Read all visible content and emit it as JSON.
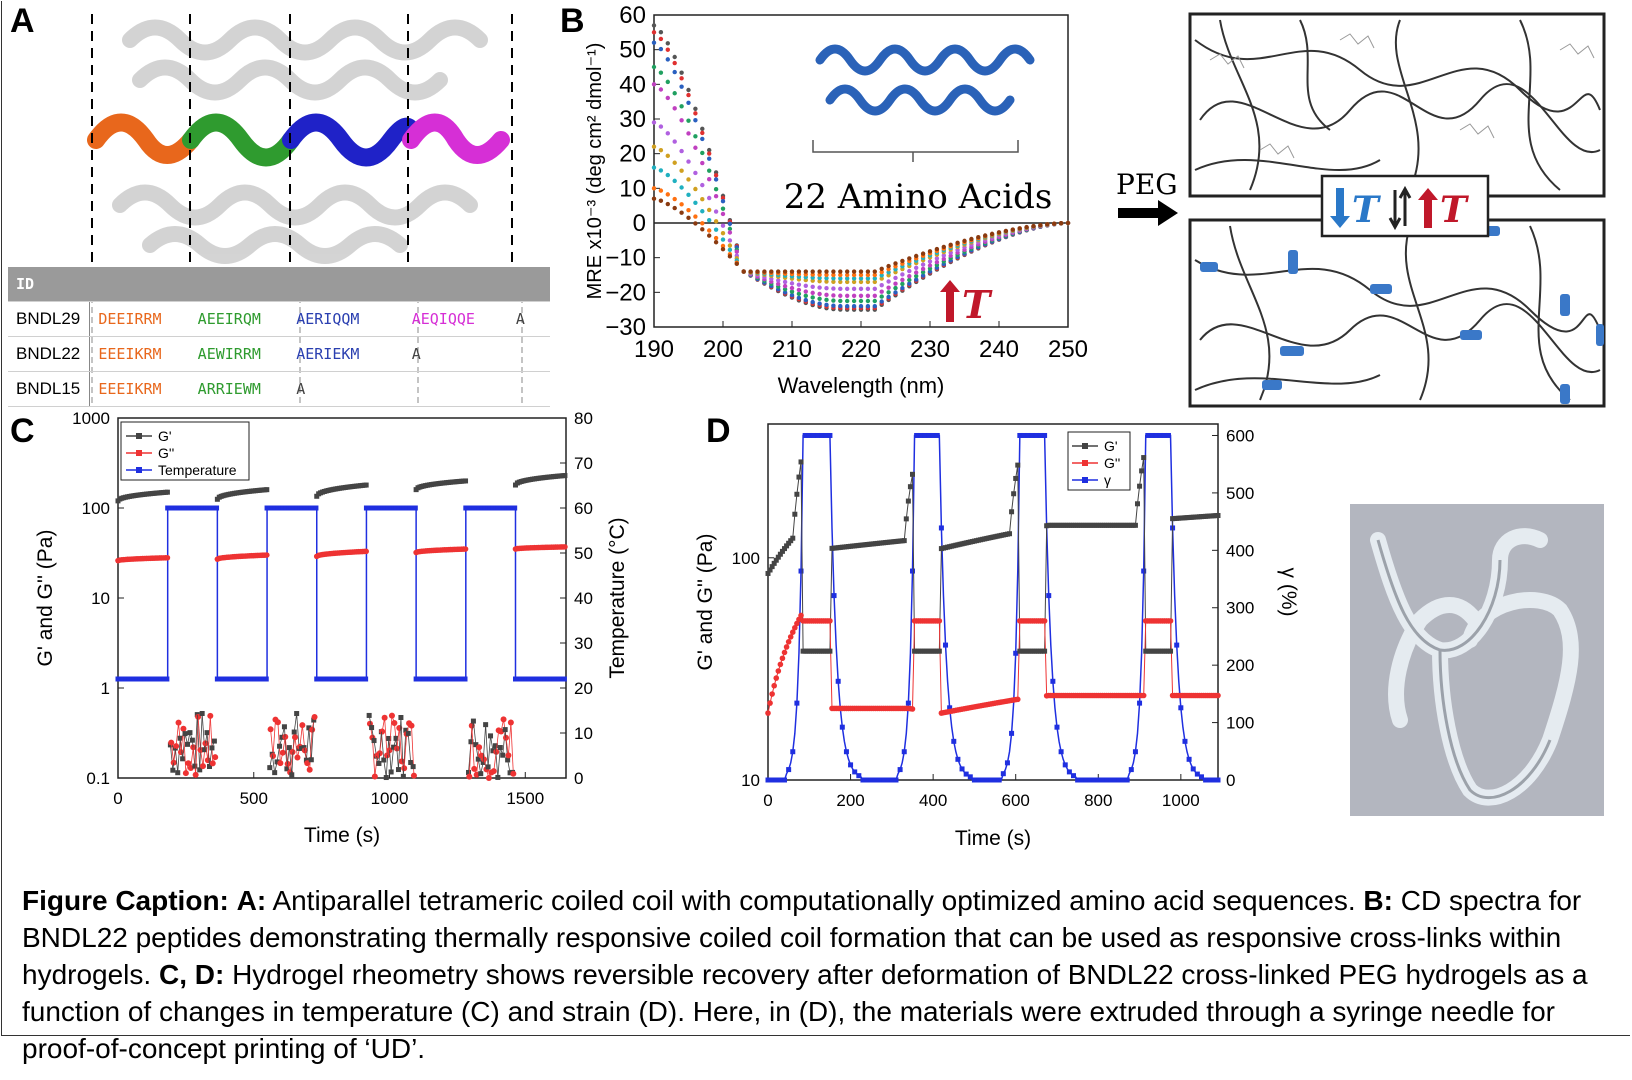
{
  "panels": {
    "a": "A",
    "b": "B",
    "c": "C",
    "d": "D"
  },
  "panel_a": {
    "table": {
      "header": "ID",
      "rows": [
        {
          "id": "BNDL29",
          "segments": [
            "DEEIRRM",
            "AEEIRQM",
            "AERIQQM",
            "AEQIQQE",
            "A"
          ]
        },
        {
          "id": "BNDL22",
          "segments": [
            "EEEIKRM",
            "AEWIRRM",
            "AERIEKM",
            "A",
            ""
          ]
        },
        {
          "id": "BNDL15",
          "segments": [
            "EEEIKRM",
            "ARRIEWM",
            "A",
            "",
            ""
          ]
        }
      ],
      "segment_colors": [
        "#e8671c",
        "#2f9b2f",
        "#2a3fb0",
        "#d62fd6",
        "#444444"
      ]
    }
  },
  "panel_b": {
    "inset_label": "22 Amino Acids",
    "peg_label": "PEG",
    "arrow_label": "T",
    "legend_t": "T"
  },
  "chart_data": [
    {
      "type": "scatter",
      "panel": "B",
      "xlabel": "Wavelength (nm)",
      "ylabel": "MRE x10⁻³ (deg cm² dmol⁻¹)",
      "xlim": [
        190,
        250
      ],
      "ylim": [
        -30,
        60
      ],
      "xticks": [
        "190",
        "200",
        "210",
        "220",
        "230",
        "240",
        "250"
      ],
      "yticks": [
        "−30",
        "−20",
        "−10",
        "0",
        "10",
        "20",
        "30",
        "40",
        "50",
        "60"
      ],
      "series_colors": [
        "#555555",
        "#e03030",
        "#2a60c0",
        "#20a060",
        "#c040c0",
        "#b060e0",
        "#d0a020",
        "#20b0c0",
        "#ff7010",
        "#8a3a10"
      ],
      "peak_values": [
        57,
        55,
        52,
        45,
        40,
        29,
        22,
        16,
        10,
        7
      ],
      "min_values": [
        -25,
        -24.5,
        -24,
        -22.5,
        -21,
        -19,
        -17,
        -16,
        -15,
        -14
      ]
    },
    {
      "type": "line",
      "panel": "C",
      "xlabel": "Time (s)",
      "ylabel": "G' and G'' (Pa)",
      "ylabel_right": "Temperature (°C)",
      "xlim": [
        0,
        1650
      ],
      "ylim_log": [
        0.1,
        1000
      ],
      "ylim_right": [
        0,
        80
      ],
      "xticks": [
        "0",
        "500",
        "1000",
        "1500"
      ],
      "yticks": [
        "0.1",
        "1",
        "10",
        "100",
        "1000"
      ],
      "yticks_right": [
        "0",
        "10",
        "20",
        "30",
        "40",
        "50",
        "60",
        "70",
        "80"
      ],
      "legend": [
        "G'",
        "G''",
        "Temperature"
      ],
      "temperature_low": 22,
      "temperature_high": 60,
      "switch_times": [
        183,
        366,
        549,
        732,
        915,
        1098,
        1281,
        1464
      ],
      "gprime_low_temp": [
        [
          0,
          120
        ],
        [
          183,
          150
        ],
        [
          366,
          125
        ],
        [
          549,
          160
        ],
        [
          732,
          135
        ],
        [
          915,
          180
        ],
        [
          1098,
          160
        ],
        [
          1281,
          200
        ],
        [
          1464,
          180
        ],
        [
          1650,
          230
        ]
      ],
      "gdouble_low_temp": [
        [
          0,
          26
        ],
        [
          183,
          28
        ],
        [
          366,
          27
        ],
        [
          549,
          30
        ],
        [
          732,
          29
        ],
        [
          915,
          33
        ],
        [
          1098,
          32
        ],
        [
          1281,
          35
        ],
        [
          1464,
          35
        ],
        [
          1650,
          37
        ]
      ]
    },
    {
      "type": "line",
      "panel": "D",
      "xlabel": "Time (s)",
      "ylabel": "G' and G'' (Pa)",
      "ylabel_right": "γ (%)",
      "xlim": [
        0,
        1090
      ],
      "ylim_log": [
        10,
        400
      ],
      "ylim_right": [
        0,
        620
      ],
      "xticks": [
        "0",
        "200",
        "400",
        "600",
        "800",
        "1000"
      ],
      "yticks": [
        "10",
        "100"
      ],
      "yticks_right": [
        "0",
        "100",
        "200",
        "300",
        "400",
        "500",
        "600"
      ],
      "legend": [
        "G'",
        "G''",
        "γ"
      ],
      "strain_peaks": [
        [
          85,
          150,
          600
        ],
        [
          355,
          415,
          600
        ],
        [
          610,
          670,
          600
        ],
        [
          915,
          975,
          600
        ]
      ],
      "gprime_baseline": [
        [
          0,
          85
        ],
        [
          80,
          135
        ],
        [
          150,
          110
        ],
        [
          340,
          120
        ],
        [
          420,
          110
        ],
        [
          600,
          130
        ],
        [
          680,
          140
        ],
        [
          900,
          140
        ],
        [
          980,
          150
        ],
        [
          1090,
          155
        ]
      ],
      "gdouble_baseline": [
        [
          0,
          20
        ],
        [
          80,
          55
        ],
        [
          150,
          21
        ],
        [
          340,
          21
        ],
        [
          420,
          20
        ],
        [
          600,
          23
        ],
        [
          680,
          24
        ],
        [
          900,
          24
        ],
        [
          980,
          24
        ],
        [
          1090,
          24
        ]
      ]
    }
  ],
  "caption": {
    "label": "Figure Caption:",
    "a_label": "A:",
    "a_text": "Antiparallel tetrameric coiled coil with computationally optimized amino acid sequences.",
    "b_label": "B:",
    "b_text": "CD spectra for BNDL22 peptides demonstrating thermally responsive coiled coil formation that can be used as responsive cross-links within hydrogels.",
    "cd_label": "C, D:",
    "cd_text": "Hydrogel rheometry shows reversible recovery after deformation of BNDL22 cross-linked PEG hydrogels as a function of changes in temperature (C) and strain (D).  Here, in (D), the materials were extruded through a syringe needle for proof-of-concept printing of ‘UD’."
  }
}
